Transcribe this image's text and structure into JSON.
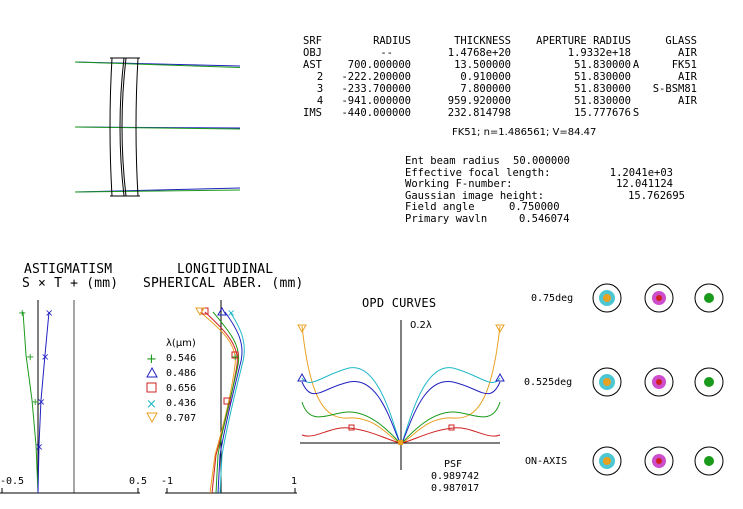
{
  "surface_table": {
    "headers": [
      "SRF",
      "RADIUS",
      "THICKNESS",
      "APERTURE RADIUS",
      "GLASS"
    ],
    "rows": [
      {
        "srf": "OBJ",
        "radius": "--",
        "thickness": "1.4768e+20",
        "aperture": "1.9332e+18",
        "flag": "",
        "glass": "AIR"
      },
      {
        "srf": "AST",
        "radius": "700.000000",
        "thickness": "13.500000",
        "aperture": "51.830000",
        "flag": "A",
        "glass": "FK51"
      },
      {
        "srf": "2",
        "radius": "-222.200000",
        "thickness": "0.910000",
        "aperture": "51.830000",
        "flag": "",
        "glass": "AIR"
      },
      {
        "srf": "3",
        "radius": "-233.700000",
        "thickness": "7.800000",
        "aperture": "51.830000",
        "flag": "",
        "glass": "S-BSM81"
      },
      {
        "srf": "4",
        "radius": "-941.000000",
        "thickness": "959.920000",
        "aperture": "51.830000",
        "flag": "",
        "glass": "AIR"
      },
      {
        "srf": "IMS",
        "radius": "-440.000000",
        "thickness": "232.814798",
        "aperture": "15.777676",
        "flag": "S",
        "glass": ""
      }
    ]
  },
  "glass_note": "FK51; n=1.486561; V=84.47",
  "system_info": [
    {
      "label": "Ent beam radius",
      "value": "50.000000"
    },
    {
      "label": "Effective focal length:",
      "value": "1.2041e+03"
    },
    {
      "label": "Working F-number:",
      "value": "12.041124"
    },
    {
      "label": "Gaussian image height:",
      "value": "15.762695"
    },
    {
      "label": "Field angle",
      "value": "0.750000"
    },
    {
      "label": "Primary wavln",
      "value": "0.546074"
    }
  ],
  "astigmatism": {
    "title": "ASTIGMATISM",
    "subtitle": "S × T + (mm)",
    "x_min_label": "-0.5",
    "x_max_label": "0.5"
  },
  "longitudinal": {
    "title": "LONGITUDINAL",
    "subtitle": "SPHERICAL ABER. (mm)",
    "x_min_label": "-1",
    "x_max_label": "1"
  },
  "wavelength_legend": {
    "title": "λ(µm)",
    "items": [
      {
        "value": "0.546",
        "color": "#1a9a1a",
        "icon": "plus-marker-icon"
      },
      {
        "value": "0.486",
        "color": "#2020c0",
        "icon": "triangle-marker-icon"
      },
      {
        "value": "0.656",
        "color": "#d02020",
        "icon": "square-marker-icon"
      },
      {
        "value": "0.436",
        "color": "#20b8c8",
        "icon": "cross-marker-icon"
      },
      {
        "value": "0.707",
        "color": "#e8a020",
        "icon": "down-triangle-marker-icon"
      }
    ]
  },
  "opd": {
    "title": "OPD CURVES",
    "scale_label": "0.2λ"
  },
  "psf": {
    "label": "PSF",
    "values": [
      "0.989742",
      "0.987017"
    ]
  },
  "spot_diagrams": {
    "field_labels": [
      "0.75deg",
      "0.525deg",
      "ON-AXIS"
    ]
  },
  "colors": {
    "green": "#1a9a1a",
    "blue": "#2020c0",
    "red": "#d02020",
    "cyan": "#20b8c8",
    "orange": "#e8a020",
    "magenta": "#c020c0"
  }
}
